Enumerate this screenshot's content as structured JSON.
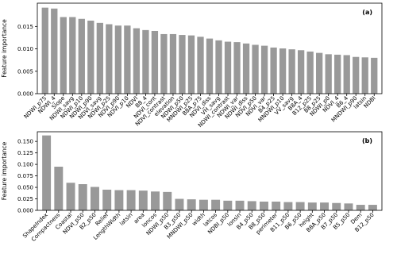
{
  "chart_data": [
    {
      "type": "bar",
      "annotation": "(a)",
      "ylabel": "Feature importance",
      "color": "#999999",
      "categories": [
        "NDWI_p75",
        "NDWI_4",
        "Slope",
        "NDWI_savg",
        "NDWI_p10",
        "NDWI_p90",
        "NDVI_savg",
        "NDWI_p25",
        "NDVI_p90",
        "NDVI_p10",
        "NDVI",
        "B8_4",
        "NDVI_cont",
        "NDVI_contrast",
        "elevation",
        "NDWI_p50",
        "MNDWI_p25",
        "B8A_p75",
        "NDVI_diss",
        "VH_savg",
        "NDWI_contrast",
        "NDWI_var",
        "NDWI_diss",
        "NDVI_p50",
        "NDVI_var",
        "B4_p25",
        "MNDWI_p10",
        "VV_savg",
        "B8A_4",
        "B12_p25",
        "B8_p25",
        "NDWI_p0",
        "NDVI_4",
        "B6_4",
        "MNDWI_p90",
        "latsin",
        "NDBI"
      ],
      "values": [
        0.0192,
        0.019,
        0.0171,
        0.0171,
        0.0167,
        0.0163,
        0.0158,
        0.0155,
        0.0152,
        0.0152,
        0.0146,
        0.0142,
        0.014,
        0.0133,
        0.0133,
        0.0131,
        0.013,
        0.0127,
        0.0123,
        0.0119,
        0.0116,
        0.0115,
        0.0112,
        0.0109,
        0.0107,
        0.0103,
        0.0101,
        0.0099,
        0.0097,
        0.0094,
        0.0091,
        0.0088,
        0.0087,
        0.0086,
        0.0082,
        0.0081,
        0.008
      ],
      "ylim": [
        0,
        0.0202
      ],
      "yticks": [
        {
          "value": 0,
          "label": "0.000"
        },
        {
          "value": 0.005,
          "label": "0.005"
        },
        {
          "value": 0.01,
          "label": "0.010"
        },
        {
          "value": 0.015,
          "label": "0.015"
        }
      ]
    },
    {
      "type": "bar",
      "annotation": "(b)",
      "ylabel": "Feature importance",
      "color": "#999999",
      "categories": [
        "ShapeIndex",
        "Compactness",
        "Coastal",
        "NDVI_p50",
        "B2_p50",
        "Relief",
        "LengthWidth",
        "latsin",
        "area",
        "loncos",
        "NDWI_p50",
        "B3_p50",
        "MNDWI_p50",
        "width",
        "latcos",
        "NDBI_p50",
        "lonsin",
        "B4_p50",
        "B8_p50",
        "perimeter",
        "B11_p50",
        "B6_p50",
        "height",
        "B8A_p50",
        "B7_p50",
        "B5_p50",
        "Dem",
        "B12_p50"
      ],
      "values": [
        0.163,
        0.095,
        0.06,
        0.057,
        0.051,
        0.045,
        0.044,
        0.044,
        0.043,
        0.041,
        0.04,
        0.025,
        0.024,
        0.023,
        0.023,
        0.021,
        0.021,
        0.02,
        0.019,
        0.019,
        0.018,
        0.018,
        0.017,
        0.017,
        0.016,
        0.015,
        0.012,
        0.012
      ],
      "ylim": [
        0,
        0.171
      ],
      "yticks": [
        {
          "value": 0,
          "label": "0.000"
        },
        {
          "value": 0.025,
          "label": "0.025"
        },
        {
          "value": 0.05,
          "label": "0.050"
        },
        {
          "value": 0.075,
          "label": "0.075"
        },
        {
          "value": 0.1,
          "label": "0.100"
        },
        {
          "value": 0.125,
          "label": "0.125"
        },
        {
          "value": 0.15,
          "label": "0.150"
        }
      ]
    }
  ]
}
